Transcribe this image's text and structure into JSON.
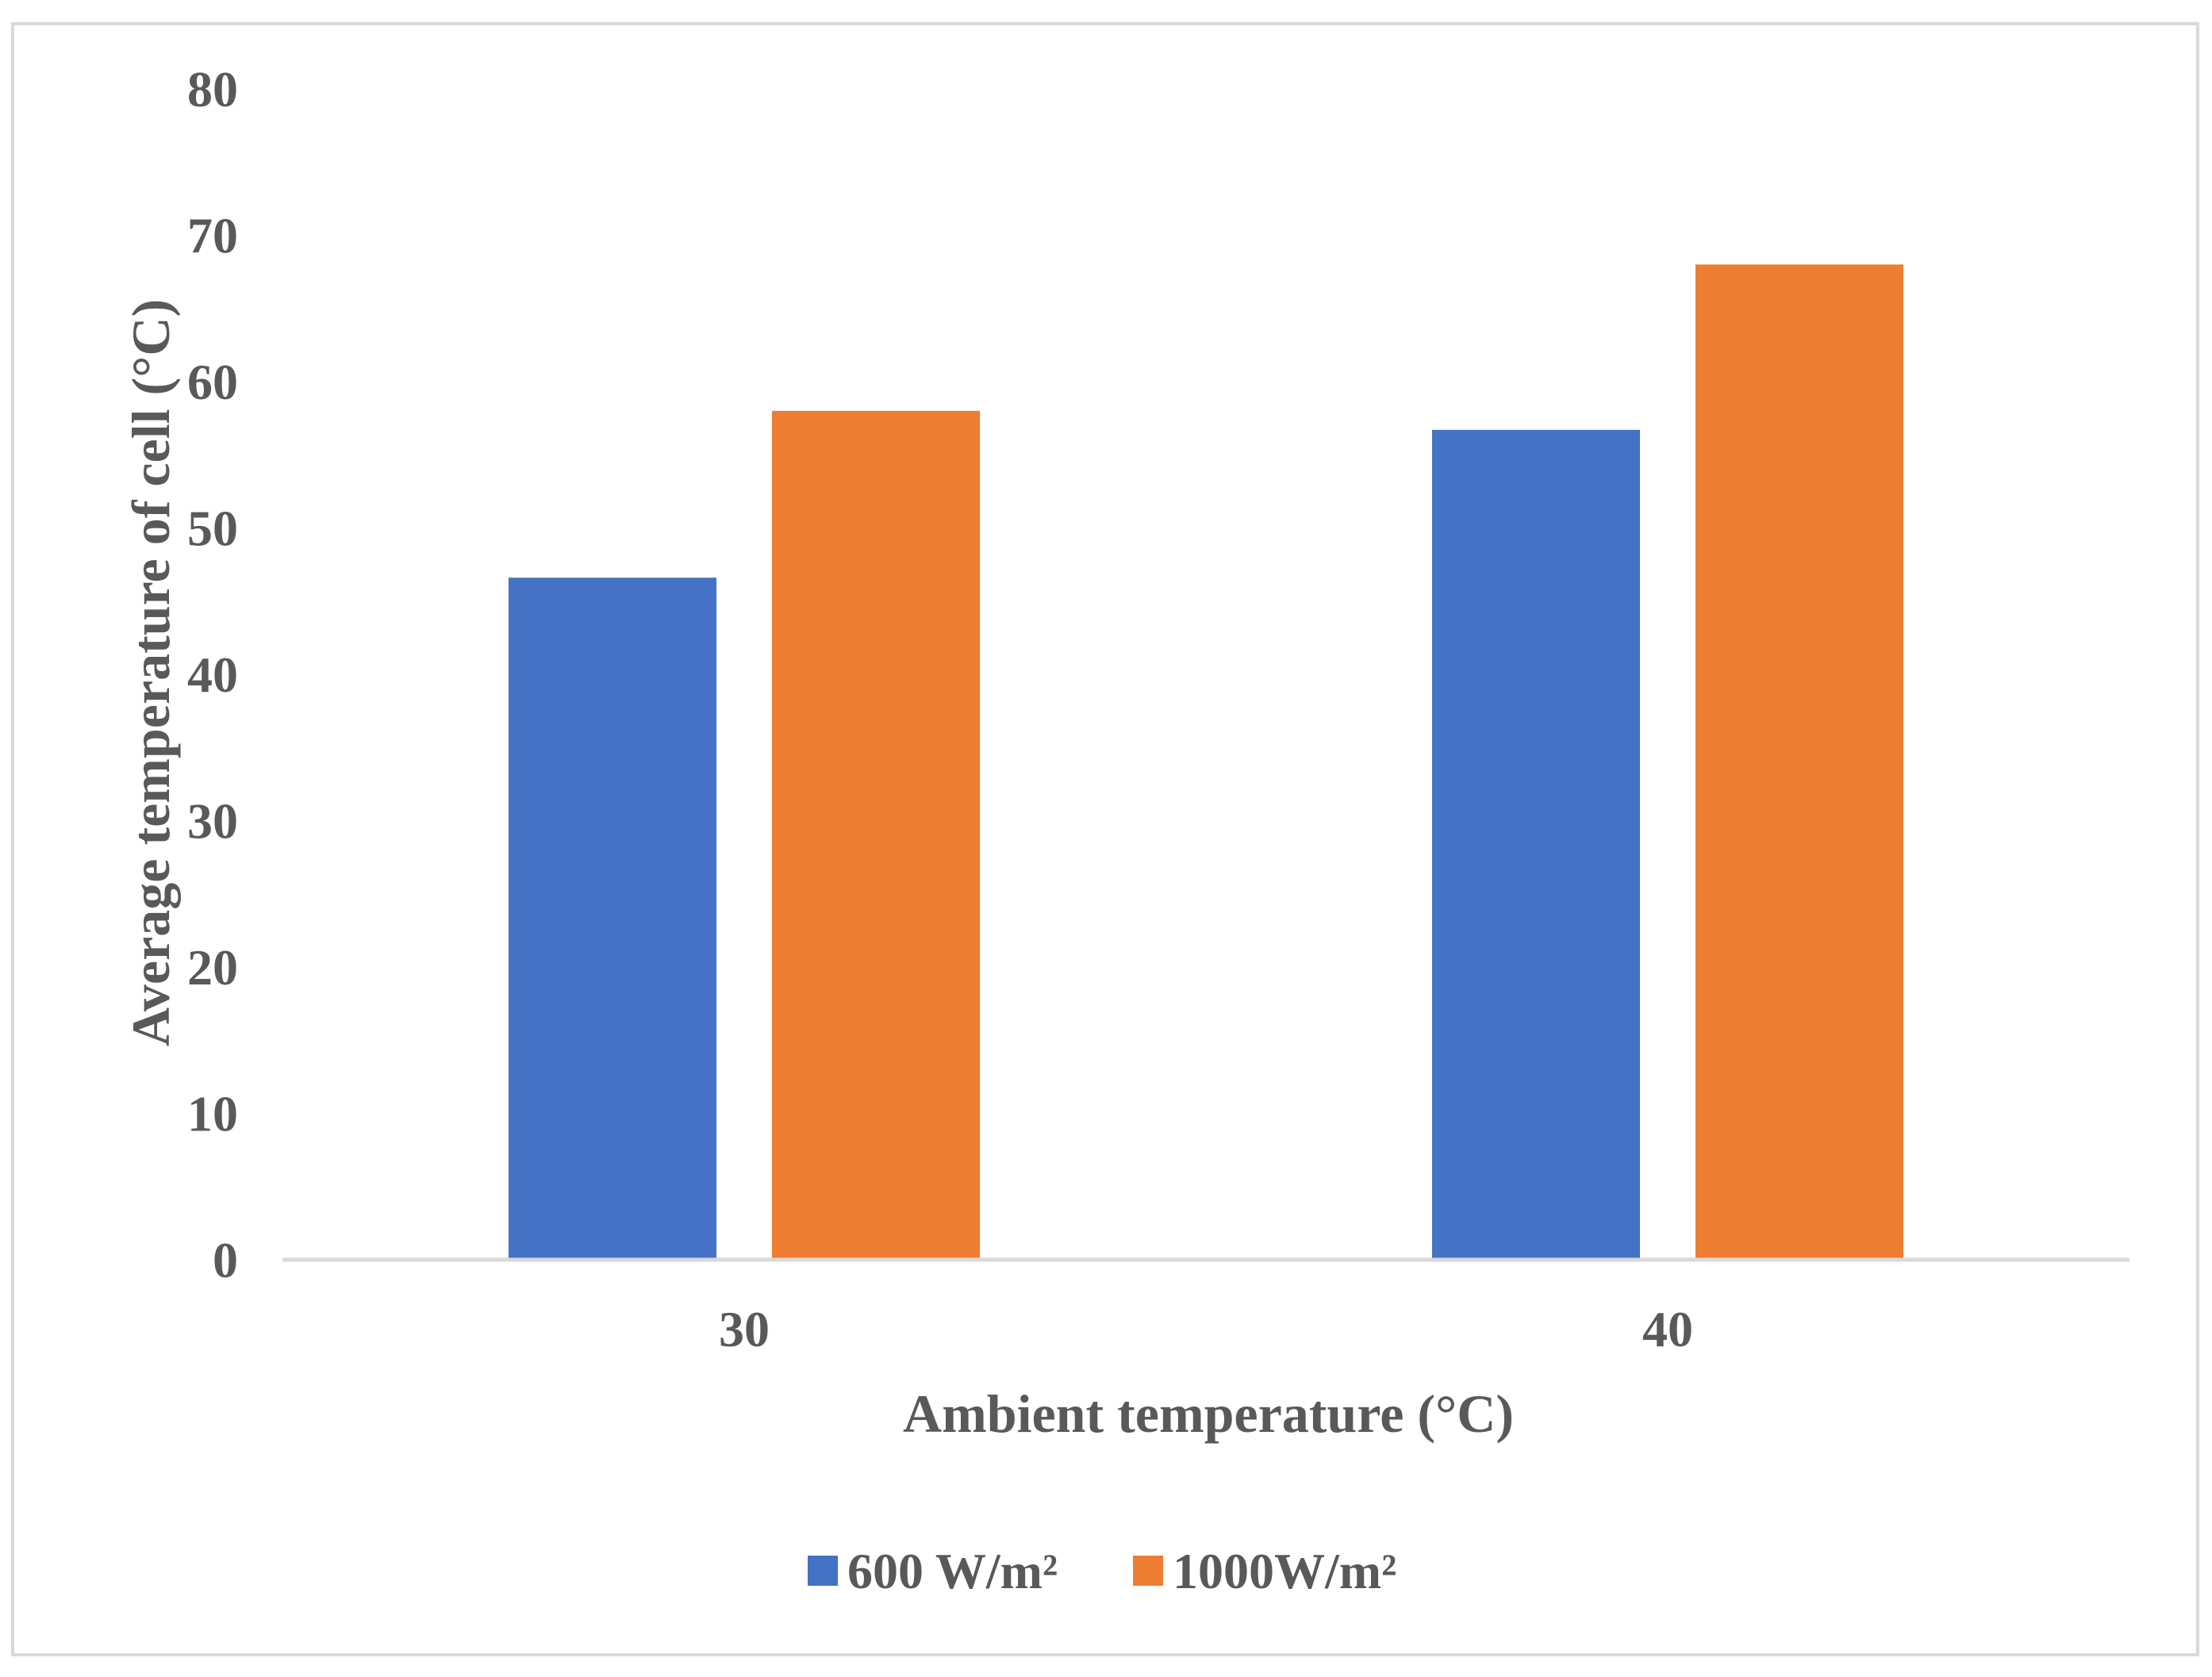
{
  "chart_data": {
    "type": "bar",
    "title": "",
    "xlabel": "Ambient temperature (°C)",
    "ylabel": "Average temperature of cell (°C)",
    "categories": [
      "30",
      "40"
    ],
    "series": [
      {
        "name": "600 W/m²",
        "color": "#4472C4",
        "values": [
          46.6,
          56.7
        ]
      },
      {
        "name": "1000W/m²",
        "color": "#ED7D31",
        "values": [
          58.0,
          68.0
        ]
      }
    ],
    "ylim": [
      0,
      80
    ],
    "yticks": [
      0,
      10,
      20,
      30,
      40,
      50,
      60,
      70,
      80
    ],
    "grid": false,
    "legend_position": "bottom",
    "axis_color": "#d9d9d9"
  }
}
